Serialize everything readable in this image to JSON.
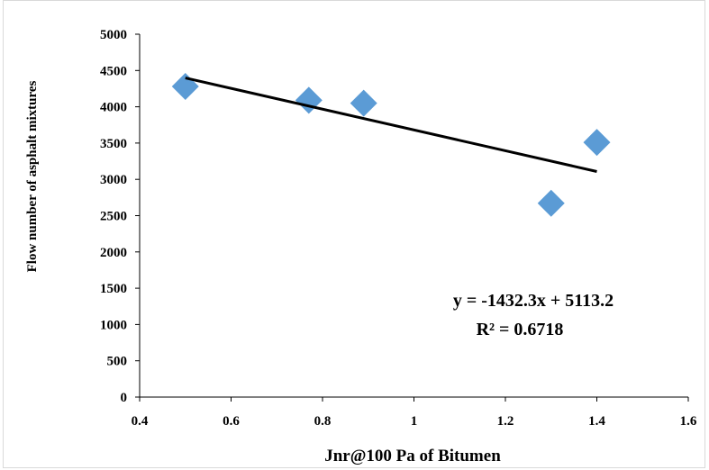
{
  "chart_data": {
    "type": "scatter",
    "title": "",
    "xlabel": "Jnr@100 Pa of Bitumen",
    "ylabel": "Flow number of asphalt mixtures",
    "xlim": [
      0.4,
      1.6
    ],
    "ylim": [
      0,
      5000
    ],
    "x_ticks": [
      "0.4",
      "0.6",
      "0.8",
      "1",
      "1.2",
      "1.4",
      "1.6"
    ],
    "y_ticks": [
      "0",
      "500",
      "1000",
      "1500",
      "2000",
      "2500",
      "3000",
      "3500",
      "4000",
      "4500",
      "5000"
    ],
    "grid": false,
    "legend": false,
    "series": [
      {
        "marker": "diamond",
        "color": "#5b9bd5",
        "points": [
          {
            "x": 0.5,
            "y": 4280
          },
          {
            "x": 0.77,
            "y": 4090
          },
          {
            "x": 0.89,
            "y": 4050
          },
          {
            "x": 1.3,
            "y": 2670
          },
          {
            "x": 1.4,
            "y": 3510
          }
        ]
      }
    ],
    "trendline": {
      "type": "linear",
      "slope": -1432.3,
      "intercept": 5113.2,
      "x_range": [
        0.5,
        1.4
      ],
      "color": "#000000",
      "equation_label": "y = -1432.3x + 5113.2",
      "r2_label": "R² = 0.6718"
    }
  }
}
